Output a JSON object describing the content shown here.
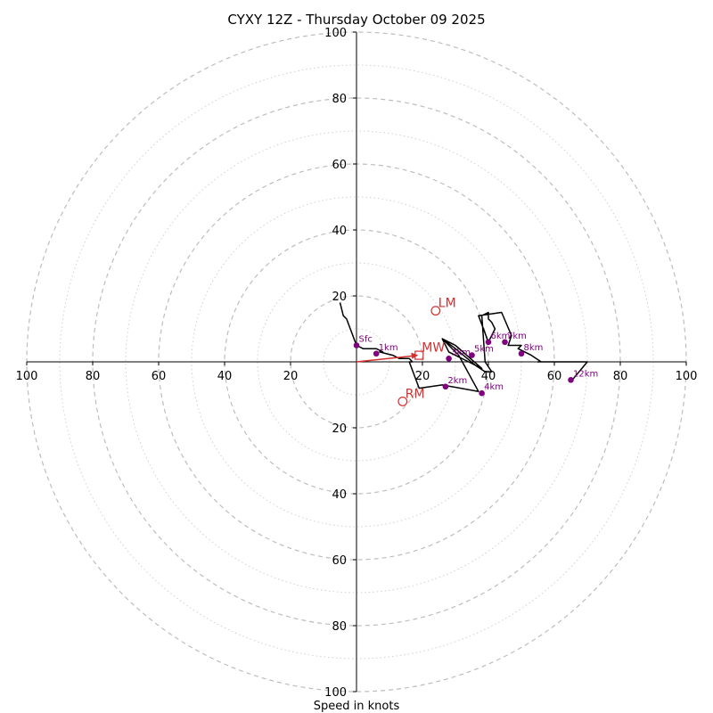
{
  "chart_data": {
    "type": "scatter",
    "subtype": "hodograph",
    "title": "CYXY 12Z - Thursday October 09 2025",
    "xlabel": "Speed in knots",
    "ylabel": "",
    "xlim": [
      -100,
      100
    ],
    "ylim": [
      -100,
      100
    ],
    "grid": true,
    "rings_major": [
      20,
      40,
      60,
      80,
      100
    ],
    "rings_minor": [
      10,
      30,
      50,
      70,
      90
    ],
    "x_tick_labels": [
      "100",
      "80",
      "60",
      "40",
      "20",
      "20",
      "40",
      "60",
      "80",
      "100"
    ],
    "x_tick_values": [
      -100,
      -80,
      -60,
      -40,
      -20,
      20,
      40,
      60,
      80,
      100
    ],
    "y_tick_labels": [
      "100",
      "80",
      "60",
      "40",
      "20",
      "20",
      "40",
      "60",
      "80",
      "100"
    ],
    "y_tick_values": [
      100,
      80,
      60,
      40,
      20,
      -20,
      -40,
      -60,
      -80,
      -100
    ],
    "profile": {
      "name": "wind profile",
      "color": "#000000",
      "u": [
        -5,
        -4,
        -3,
        0,
        2,
        4,
        6,
        8,
        7,
        11,
        13,
        15,
        16,
        17,
        16,
        19,
        26,
        37,
        31,
        26,
        28,
        34,
        38,
        30,
        26,
        30,
        36,
        39,
        41,
        39,
        38,
        40,
        40,
        41,
        42,
        40,
        37,
        44,
        47,
        46,
        50,
        49,
        53,
        56,
        55,
        62,
        70,
        65
      ],
      "v": [
        18,
        14,
        13,
        5,
        4,
        4,
        4,
        3,
        3,
        2,
        1,
        1,
        1,
        0,
        0,
        -8,
        -7,
        -9,
        2,
        7,
        3,
        0,
        -2,
        5,
        7,
        4,
        -1,
        -3,
        -3,
        0,
        14,
        15,
        13,
        12,
        10,
        6,
        14,
        15,
        8,
        5,
        5,
        4,
        2,
        0,
        0,
        0,
        0,
        -6
      ]
    },
    "height_markers": [
      {
        "label": "Sfc",
        "u": 0,
        "v": 5
      },
      {
        "label": "1km",
        "u": 6,
        "v": 2.5
      },
      {
        "label": "2km",
        "u": 27,
        "v": -7.5
      },
      {
        "label": "3km",
        "u": 28,
        "v": 1
      },
      {
        "label": "4km",
        "u": 38,
        "v": -9.5
      },
      {
        "label": "5km",
        "u": 35,
        "v": 2
      },
      {
        "label": "6km",
        "u": 40,
        "v": 6
      },
      {
        "label": "7km",
        "u": 45,
        "v": 6
      },
      {
        "label": "8km",
        "u": 50,
        "v": 2.5
      },
      {
        "label": "12km",
        "u": 65,
        "v": -5.5
      }
    ],
    "motion_points": [
      {
        "label": "LM",
        "u": 24,
        "v": 15.5,
        "shape": "circle"
      },
      {
        "label": "RM",
        "u": 14,
        "v": -12,
        "shape": "circle"
      },
      {
        "label": "MW",
        "u": 19,
        "v": 2,
        "shape": "square"
      }
    ],
    "mean_wind_arrow": {
      "u": 19,
      "v": 2
    },
    "colors": {
      "grid": "#bdbdbd",
      "markers": "#800080",
      "motion": "#d32f2f",
      "profile": "#000000"
    }
  }
}
